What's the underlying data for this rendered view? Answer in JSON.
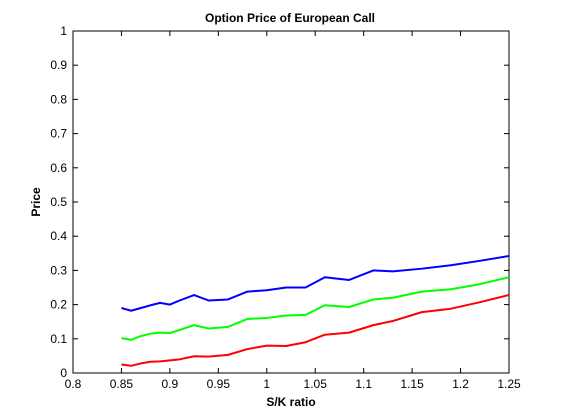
{
  "chart_data": {
    "type": "line",
    "title": "Option Price of European Call",
    "xlabel": "S/K ratio",
    "ylabel": "Price",
    "xlim": [
      0.8,
      1.25
    ],
    "ylim": [
      0,
      1
    ],
    "xticks": [
      "0.8",
      "0.85",
      "0.9",
      "0.95",
      "1",
      "1.05",
      "1.1",
      "1.15",
      "1.2",
      "1.25"
    ],
    "yticks": [
      "0",
      "0.1",
      "0.2",
      "0.3",
      "0.4",
      "0.5",
      "0.6",
      "0.7",
      "0.8",
      "0.9",
      "1"
    ],
    "grid": false,
    "legend": "none",
    "x": [
      0.85,
      0.86,
      0.87,
      0.88,
      0.89,
      0.9,
      0.91,
      0.925,
      0.94,
      0.96,
      0.98,
      1.0,
      1.02,
      1.04,
      1.06,
      1.085,
      1.11,
      1.13,
      1.16,
      1.19,
      1.22,
      1.25
    ],
    "series": [
      {
        "color": "#0000ff",
        "values": [
          0.19,
          0.182,
          0.19,
          0.198,
          0.205,
          0.2,
          0.212,
          0.228,
          0.212,
          0.215,
          0.238,
          0.242,
          0.25,
          0.25,
          0.28,
          0.272,
          0.3,
          0.297,
          0.305,
          0.315,
          0.328,
          0.342
        ]
      },
      {
        "color": "#00ff00",
        "values": [
          0.102,
          0.097,
          0.108,
          0.115,
          0.118,
          0.117,
          0.126,
          0.14,
          0.13,
          0.135,
          0.158,
          0.161,
          0.168,
          0.17,
          0.198,
          0.193,
          0.215,
          0.22,
          0.238,
          0.245,
          0.26,
          0.28
        ]
      },
      {
        "color": "#ff0000",
        "values": [
          0.025,
          0.021,
          0.028,
          0.033,
          0.034,
          0.037,
          0.04,
          0.049,
          0.048,
          0.053,
          0.07,
          0.08,
          0.079,
          0.09,
          0.112,
          0.118,
          0.14,
          0.152,
          0.178,
          0.188,
          0.207,
          0.228
        ]
      }
    ]
  }
}
